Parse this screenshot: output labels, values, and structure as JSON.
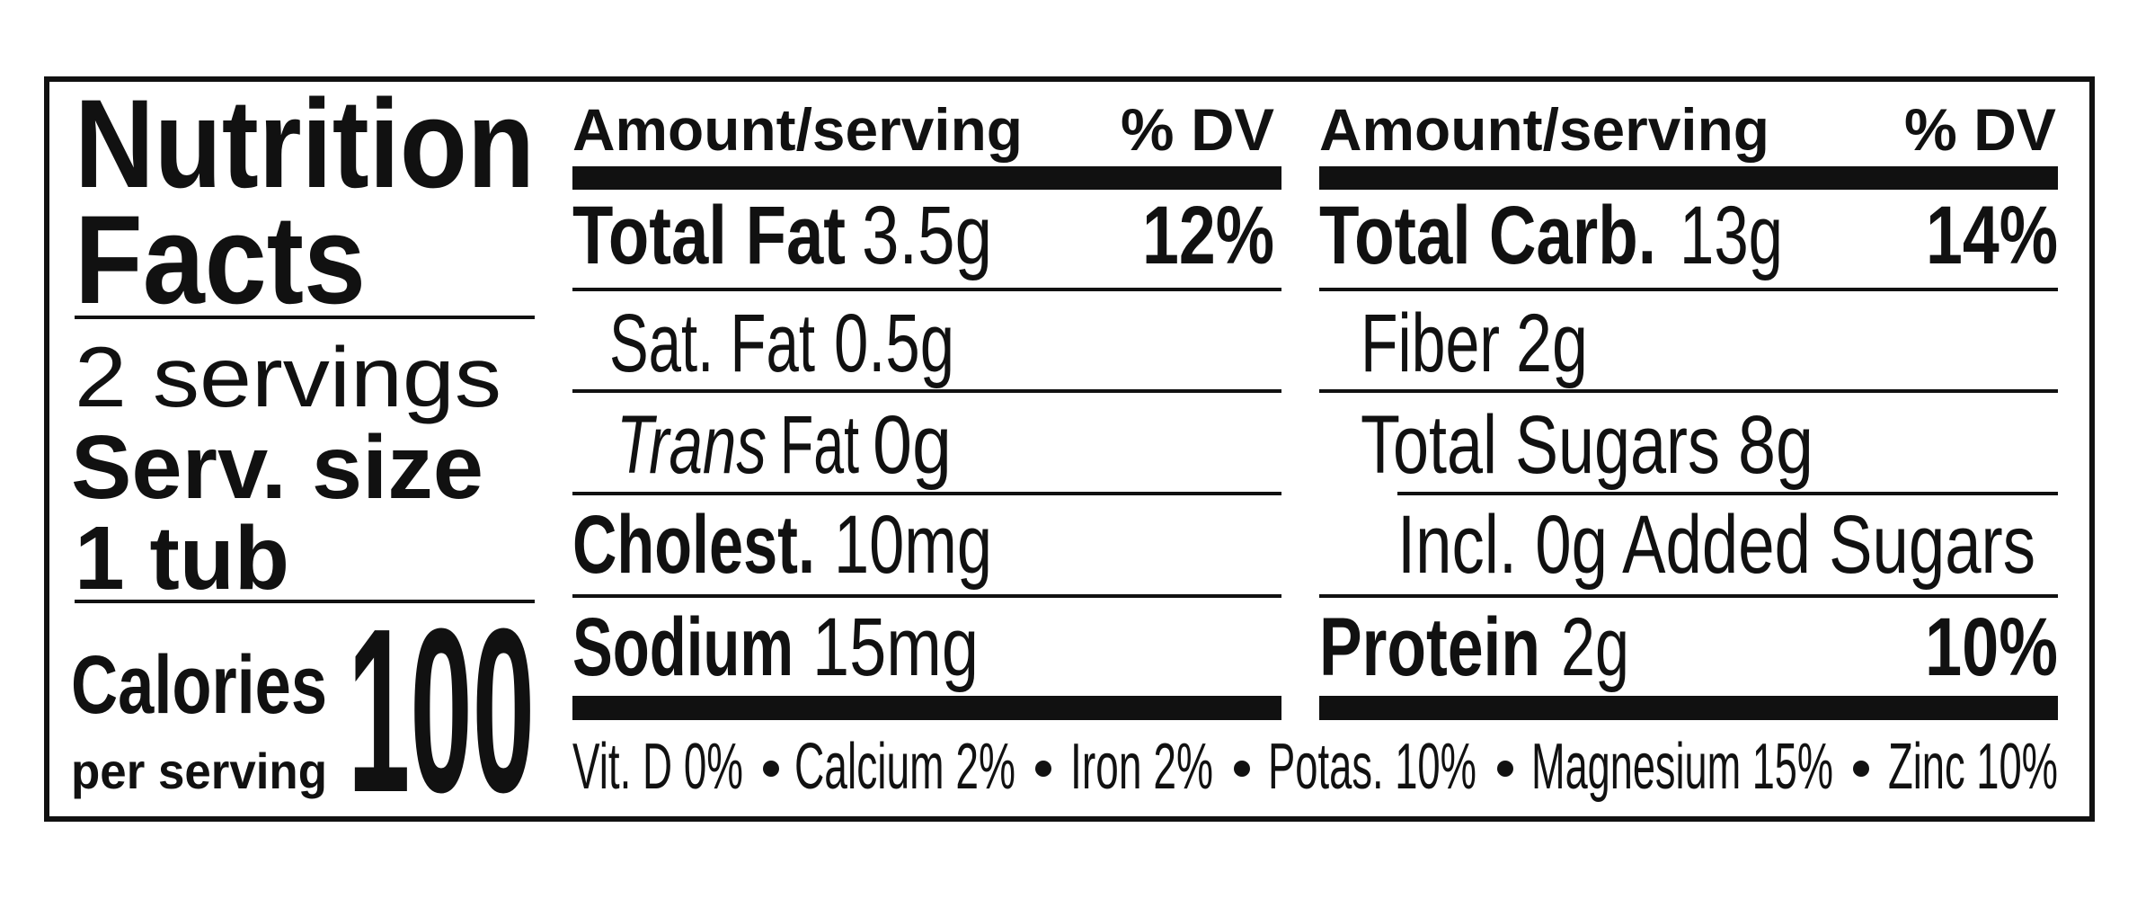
{
  "header": {
    "title_line1": "Nutrition",
    "title_line2": "Facts"
  },
  "servings": "2 servings",
  "serving_size": {
    "label": "Serv. size",
    "value": "1 tub"
  },
  "calories": {
    "label": "Calories",
    "sublabel": "per serving",
    "value": 100
  },
  "columns": [
    {
      "header": {
        "amount": "Amount/serving",
        "dv": "% DV"
      },
      "rows": [
        {
          "name": "Total Fat",
          "amount": "3.5g",
          "dv": "12%"
        },
        {
          "name": "Sat. Fat",
          "amount": "0.5g"
        },
        {
          "name_italic": "Trans",
          "name": "Fat",
          "amount": "0g"
        },
        {
          "name": "Cholest.",
          "amount": "10mg"
        },
        {
          "name": "Sodium",
          "amount": "15mg"
        }
      ]
    },
    {
      "header": {
        "amount": "Amount/serving",
        "dv": "% DV"
      },
      "rows": [
        {
          "name": "Total Carb.",
          "amount": "13g",
          "dv": "14%"
        },
        {
          "name": "Fiber",
          "amount": "2g"
        },
        {
          "name": "Total Sugars",
          "amount": "8g"
        },
        {
          "name": "Incl. 0g Added Sugars"
        },
        {
          "name": "Protein",
          "amount": "2g",
          "dv": "10%"
        }
      ]
    }
  ],
  "footer": {
    "nutrients": [
      "Vit. D 0%",
      "Calcium 2%",
      "Iron 2%",
      "Potas. 10%",
      "Magnesium 15%",
      "Zinc 10%"
    ]
  }
}
